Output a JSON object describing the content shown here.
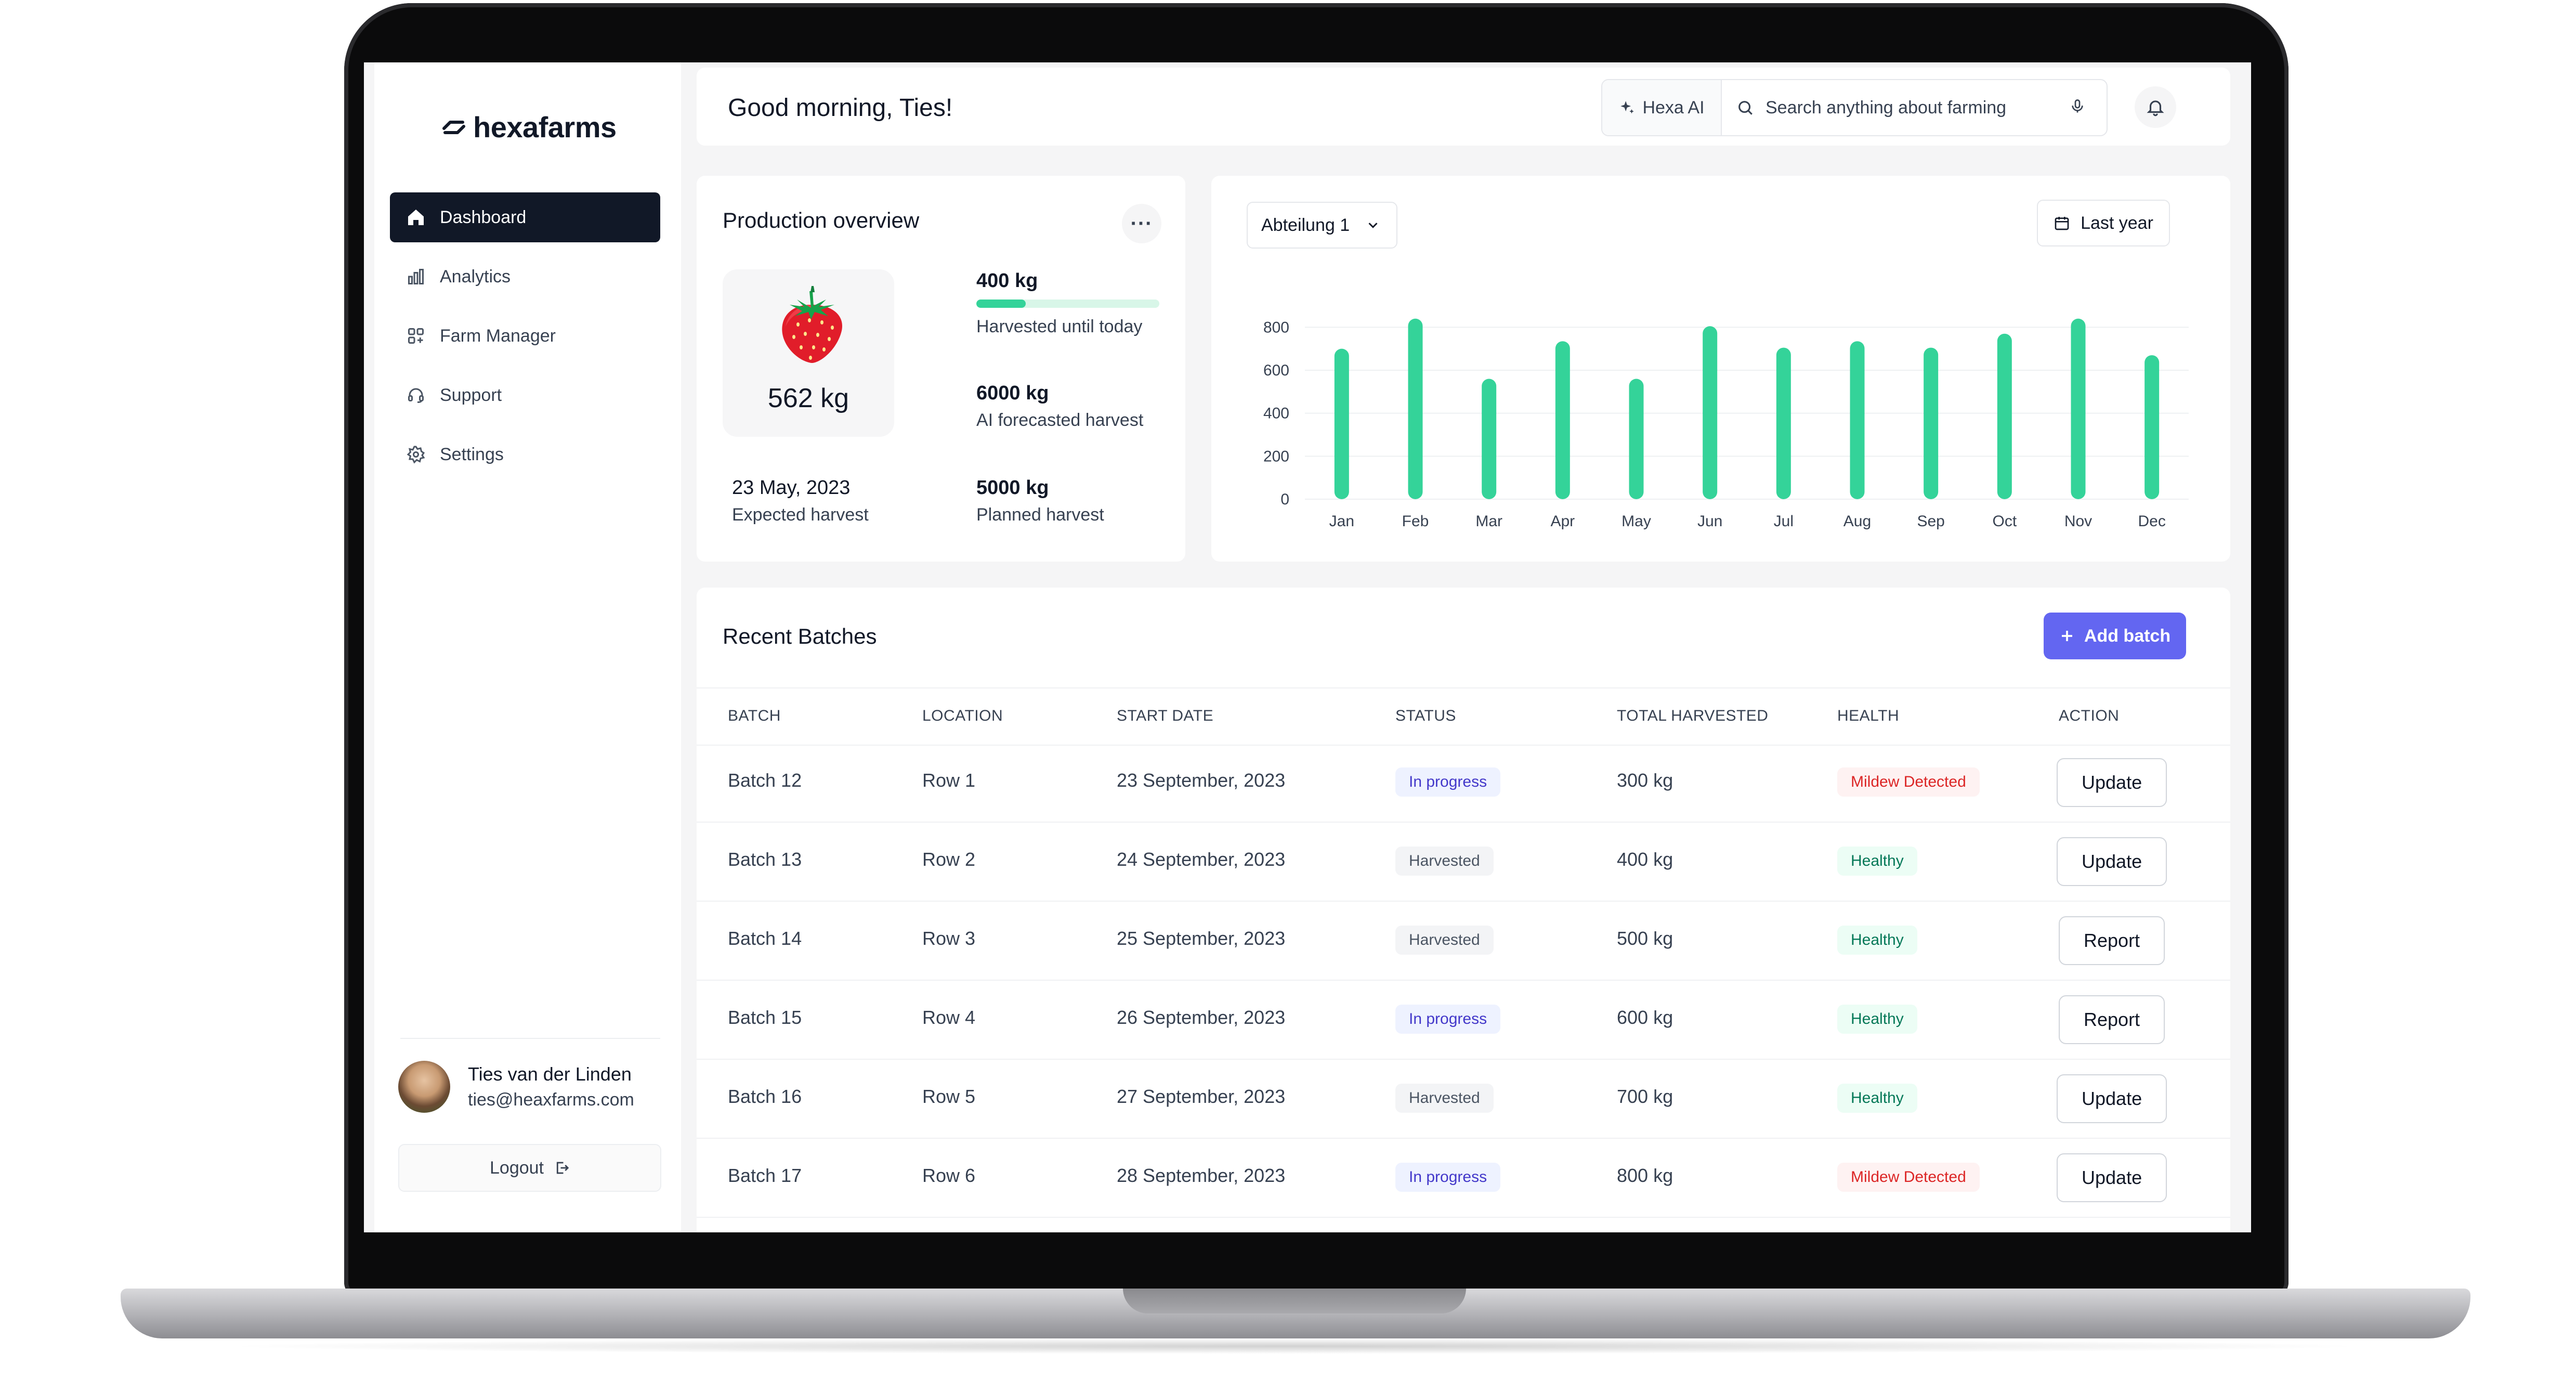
{
  "app": {
    "logo_text": "hexafarms"
  },
  "sidebar": {
    "items": [
      {
        "label": "Dashboard",
        "icon": "home-icon",
        "active": true
      },
      {
        "label": "Analytics",
        "icon": "bar-chart-icon"
      },
      {
        "label": "Farm Manager",
        "icon": "grid-plus-icon"
      },
      {
        "label": "Support",
        "icon": "headset-icon"
      },
      {
        "label": "Settings",
        "icon": "gear-icon"
      }
    ],
    "user": {
      "name": "Ties van der Linden",
      "email": "ties@heaxfarms.com"
    },
    "logout_label": "Logout"
  },
  "header": {
    "greeting": "Good morning, Ties!",
    "ai_label": "Hexa AI",
    "search_placeholder": "Search anything about farming"
  },
  "production": {
    "title": "Production overview",
    "product_weight": "562 kg",
    "harvested": {
      "value": "400 kg",
      "label": "Harvested until today",
      "progress": 0.27
    },
    "forecast": {
      "value": "6000 kg",
      "label": "AI forecasted harvest"
    },
    "expected": {
      "value": "23 May, 2023",
      "label": "Expected harvest"
    },
    "planned": {
      "value": "5000 kg",
      "label": "Planned harvest"
    }
  },
  "chart_filters": {
    "section": "Abteilung 1",
    "range": "Last year"
  },
  "chart_data": {
    "type": "bar",
    "categories": [
      "Jan",
      "Feb",
      "Mar",
      "Apr",
      "May",
      "Jun",
      "Jul",
      "Aug",
      "Sep",
      "Oct",
      "Nov",
      "Dec"
    ],
    "values": [
      700,
      840,
      560,
      735,
      560,
      805,
      705,
      735,
      705,
      770,
      840,
      670
    ],
    "yticks": [
      0,
      200,
      400,
      600,
      800
    ],
    "ylim": [
      0,
      900
    ],
    "grid": true,
    "color": "#34d399"
  },
  "batches": {
    "title": "Recent Batches",
    "add_label": "Add batch",
    "columns": [
      "BATCH",
      "LOCATION",
      "START DATE",
      "STATUS",
      "TOTAL HARVESTED",
      "HEALTH",
      "ACTION"
    ],
    "rows": [
      {
        "batch": "Batch 12",
        "location": "Row 1",
        "start": "23 September, 2023",
        "status": "In progress",
        "total": "300 kg",
        "health": "Mildew Detected",
        "action": "Update"
      },
      {
        "batch": "Batch 13",
        "location": "Row 2",
        "start": "24 September, 2023",
        "status": "Harvested",
        "total": "400 kg",
        "health": "Healthy",
        "action": "Update"
      },
      {
        "batch": "Batch 14",
        "location": "Row 3",
        "start": "25 September, 2023",
        "status": "Harvested",
        "total": "500 kg",
        "health": "Healthy",
        "action": "Report"
      },
      {
        "batch": "Batch 15",
        "location": "Row 4",
        "start": "26 September, 2023",
        "status": "In progress",
        "total": "600 kg",
        "health": "Healthy",
        "action": "Report"
      },
      {
        "batch": "Batch 16",
        "location": "Row 5",
        "start": "27 September, 2023",
        "status": "Harvested",
        "total": "700 kg",
        "health": "Healthy",
        "action": "Update"
      },
      {
        "batch": "Batch 17",
        "location": "Row 6",
        "start": "28 September, 2023",
        "status": "In progress",
        "total": "800 kg",
        "health": "Mildew Detected",
        "action": "Update"
      }
    ]
  }
}
